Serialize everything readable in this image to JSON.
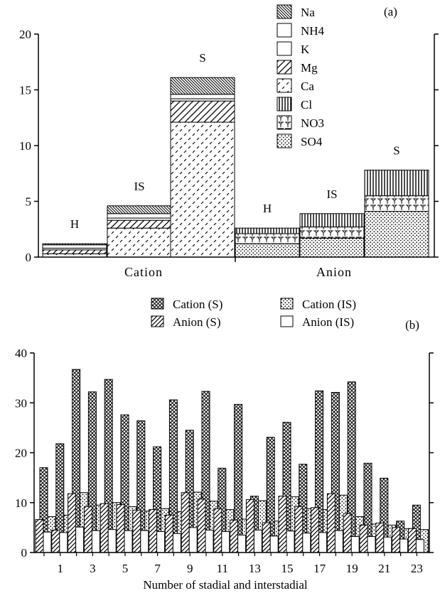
{
  "chart_data": [
    {
      "type": "bar",
      "stacked": true,
      "panel_label": "(a)",
      "groups": [
        "Cation",
        "Anion"
      ],
      "categories": [
        "H",
        "IS",
        "S",
        "H",
        "IS",
        "S"
      ],
      "category_group": [
        "Cation",
        "Cation",
        "Cation",
        "Anion",
        "Anion",
        "Anion"
      ],
      "ylim": [
        0,
        20
      ],
      "yticks": [
        "0",
        "5",
        "10",
        "15",
        "20"
      ],
      "legend_position": "top-right",
      "series": [
        {
          "name": "Na",
          "pattern": "diag-dense-back",
          "values": [
            0.1,
            0.7,
            1.5,
            null,
            null,
            null
          ]
        },
        {
          "name": "NH4",
          "pattern": "blank",
          "values": [
            0.3,
            0.4,
            0.4,
            null,
            null,
            null
          ]
        },
        {
          "name": "K",
          "pattern": "blank",
          "values": [
            0.15,
            0.2,
            0.2,
            null,
            null,
            null
          ]
        },
        {
          "name": "Mg",
          "pattern": "diag-forward",
          "values": [
            0.35,
            0.7,
            1.9,
            null,
            null,
            null
          ]
        },
        {
          "name": "Ca",
          "pattern": "dashes",
          "values": [
            0.3,
            2.6,
            12.1,
            null,
            null,
            null
          ]
        },
        {
          "name": "Cl",
          "pattern": "vertical-lines",
          "values": [
            null,
            null,
            null,
            0.5,
            1.2,
            2.3
          ]
        },
        {
          "name": "NO3",
          "pattern": "cups",
          "values": [
            null,
            null,
            null,
            0.9,
            1.0,
            1.4
          ]
        },
        {
          "name": "SO4",
          "pattern": "dots",
          "values": [
            null,
            null,
            null,
            1.2,
            1.7,
            4.1
          ]
        }
      ]
    },
    {
      "type": "bar",
      "panel_label": "(b)",
      "xlabel": "Number of stadial and interstadial",
      "ylim": [
        0,
        40
      ],
      "yticks": [
        "0",
        "10",
        "20",
        "30",
        "40"
      ],
      "xticks": [
        "1",
        "3",
        "5",
        "7",
        "9",
        "11",
        "13",
        "15",
        "17",
        "19",
        "21",
        "23"
      ],
      "legend_position": "top",
      "x": [
        0,
        1,
        2,
        3,
        4,
        5,
        6,
        7,
        8,
        9,
        10,
        11,
        12,
        13,
        14,
        15,
        16,
        17,
        18,
        19,
        20,
        21,
        22,
        23
      ],
      "series": [
        {
          "name": "Cation (S)",
          "pattern": "crosshatch",
          "values": [
            17,
            21.8,
            36.7,
            32.2,
            34.7,
            27.6,
            26.4,
            21.2,
            30.6,
            24.5,
            32.3,
            16.9,
            29.7,
            11.3,
            23.1,
            26.1,
            17.7,
            32.4,
            32.1,
            34.2,
            17.9,
            14.9,
            6.3,
            9.5
          ]
        },
        {
          "name": "Cation (IS)",
          "pattern": "dots",
          "values": [
            7.2,
            7.5,
            12.0,
            9.5,
            10.0,
            9.2,
            8.3,
            8.8,
            8.2,
            12.1,
            10.3,
            8.6,
            6.7,
            10.4,
            6.3,
            11.2,
            8.8,
            8.6,
            11.5,
            7.2,
            5.7,
            5.5,
            4.8,
            4.6
          ]
        },
        {
          "name": "Anion (S)",
          "pattern": "diag",
          "values": [
            6.6,
            4.5,
            11.8,
            9.2,
            9.8,
            9.6,
            8.5,
            8.6,
            7.5,
            12.0,
            10.7,
            8.8,
            6.5,
            10.6,
            6.0,
            11.3,
            9.2,
            9.0,
            11.8,
            7.8,
            5.5,
            5.9,
            5.0,
            4.8
          ]
        },
        {
          "name": "Anion (IS)",
          "pattern": "blank",
          "values": [
            4.1,
            4.0,
            5.1,
            4.4,
            4.6,
            4.4,
            4.4,
            4.2,
            3.8,
            5.0,
            4.5,
            4.2,
            3.5,
            4.5,
            3.3,
            4.3,
            3.9,
            4.0,
            4.4,
            3.2,
            3.2,
            3.1,
            2.7,
            2.6
          ]
        }
      ]
    }
  ]
}
